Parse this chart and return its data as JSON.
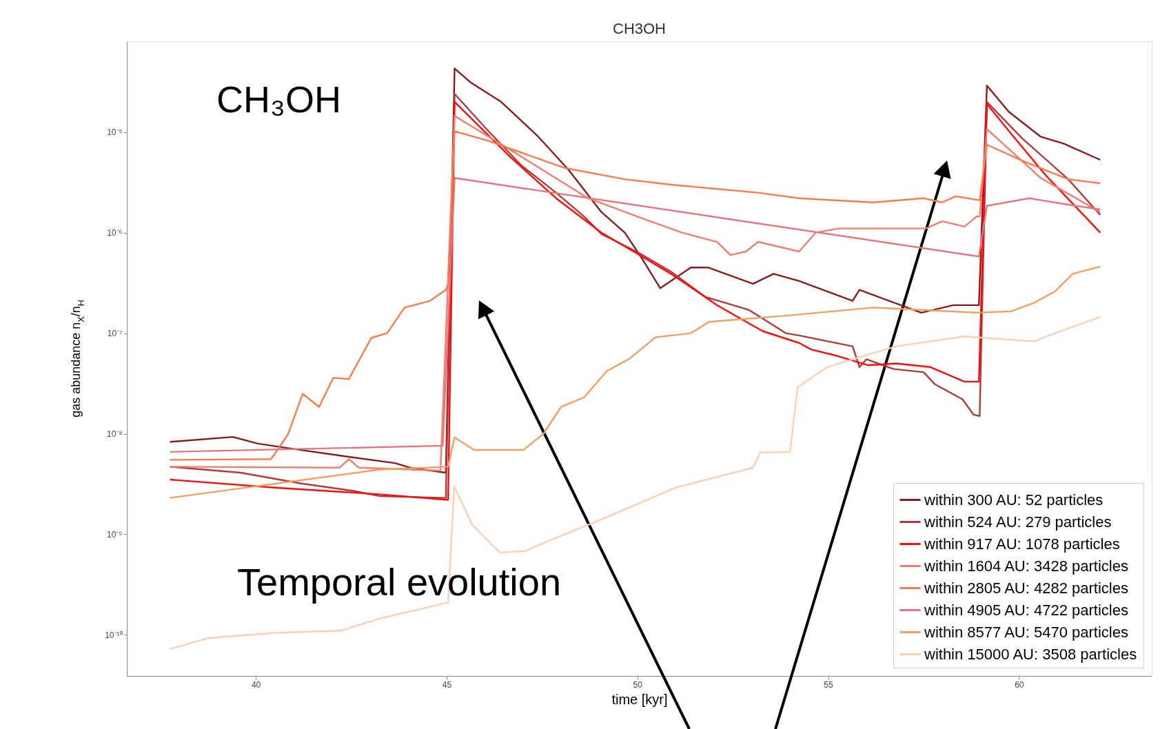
{
  "chart_data": {
    "type": "line",
    "title": "CH3OH",
    "xlabel": "time [kyr]",
    "ylabel": "gas abundance n$_{X}$/n$_{H}$",
    "annotations": [
      "CH₃OH",
      "Temporal evolution"
    ],
    "log": "y",
    "grid": false,
    "legend": "bottom right",
    "marker": "none",
    "line_style": "solid",
    "xlim": [
      36.62,
      63.48
    ],
    "xticks": [
      40,
      45,
      50,
      55,
      60
    ],
    "ylim": [
      3.9e-11,
      8e-05
    ],
    "yticks": [
      {
        "value": 1e-10,
        "label": "10⁻¹⁰"
      },
      {
        "value": 1e-09,
        "label": "10⁻⁹"
      },
      {
        "value": 1e-08,
        "label": "10⁻⁸"
      },
      {
        "value": 1e-07,
        "label": "10⁻⁷"
      },
      {
        "value": 1e-06,
        "label": "10⁻⁶"
      },
      {
        "value": 1e-05,
        "label": "10⁻⁵"
      }
    ],
    "series": [
      {
        "name": "within 300 AU: 52 particles",
        "color": "#8b1a1a",
        "x": [
          37.75,
          39.4,
          40.04,
          40.84,
          42.44,
          43.65,
          44.04,
          44.98,
          45.21,
          45.64,
          46.43,
          47.38,
          48.2,
          49.06,
          49.67,
          50.1,
          50.6,
          51.4,
          51.86,
          53.03,
          53.57,
          54.24,
          55.64,
          55.82,
          57.44,
          58.28,
          58.95,
          59.16,
          59.73,
          60.57,
          61.17,
          62.13
        ],
        "values": [
          8.3e-09,
          9.3e-09,
          8e-09,
          7.2e-09,
          5.9e-09,
          5.1e-09,
          4.6e-09,
          4.1e-09,
          4.3e-05,
          3.1e-05,
          2e-05,
          9.2e-06,
          4.2e-06,
          1.6e-06,
          1e-06,
          5.7e-07,
          2.8e-07,
          4.5e-07,
          4.5e-07,
          3.1e-07,
          3.9e-07,
          3.3e-07,
          2.1e-07,
          2.7e-07,
          1.6e-07,
          1.9e-07,
          1.9e-07,
          2.9e-05,
          1.6e-05,
          9e-06,
          7.7e-06,
          5.3e-06
        ]
      },
      {
        "name": "within 524 AU: 279 particles",
        "color": "#b03a3a",
        "x": [
          37.75,
          39.6,
          41.2,
          42.56,
          43.24,
          44.98,
          45.21,
          46.05,
          46.95,
          47.87,
          48.6,
          49.06,
          50.04,
          50.88,
          51.78,
          52.93,
          53.89,
          54.24,
          55.64,
          55.82,
          56.0,
          56.72,
          57.5,
          57.8,
          58.52,
          58.81,
          58.97,
          59.16,
          60.08,
          61.29,
          62.13
        ],
        "values": [
          4.7e-09,
          4.1e-09,
          3.2e-09,
          2.7e-09,
          2.4e-09,
          2.3e-09,
          2.4e-05,
          1.07e-05,
          4.7e-06,
          2.5e-06,
          1.45e-06,
          9.7e-07,
          6.3e-07,
          4.1e-07,
          2.3e-07,
          1.7e-07,
          1e-07,
          9.5e-08,
          7.4e-08,
          4.6e-08,
          5.5e-08,
          4.4e-08,
          4.1e-08,
          3.1e-08,
          2.2e-08,
          1.55e-08,
          1.5e-08,
          2e-05,
          8.7e-06,
          3.4e-06,
          1.5e-06
        ]
      },
      {
        "name": "within 917 AU: 1078 particles",
        "color": "#ff0a0a",
        "x": [
          37.75,
          40.57,
          43.24,
          45.04,
          45.21,
          46.66,
          47.87,
          49.06,
          49.96,
          50.88,
          52.09,
          53.28,
          54.24,
          54.55,
          55.27,
          56.05,
          56.78,
          57.68,
          58.57,
          58.95,
          59.16,
          59.79,
          60.68,
          62.13
        ],
        "values": [
          3.5e-09,
          2.9e-09,
          2.5e-09,
          2.2e-09,
          2e-05,
          5.7e-06,
          2.2e-06,
          1e-06,
          6.3e-07,
          3.9e-07,
          1.9e-07,
          1.05e-07,
          8e-08,
          6.9e-08,
          5.9e-08,
          4.8e-08,
          5e-08,
          4.6e-08,
          3.3e-08,
          3.3e-08,
          1.9e-05,
          9.7e-06,
          3.8e-06,
          1e-06
        ]
      },
      {
        "name": "within 1604 AU: 3428 particles",
        "color": "#f47c6c",
        "x": [
          37.75,
          42.2,
          42.44,
          42.7,
          44.84,
          45.21,
          46.66,
          48.71,
          50.1,
          51.17,
          52.09,
          52.44,
          52.85,
          53.16,
          54.24,
          54.67,
          55.27,
          57.56,
          57.99,
          58.57,
          58.89,
          58.97,
          59.16,
          60.57,
          62.13
        ],
        "values": [
          4.7e-09,
          4.6e-09,
          5.6e-09,
          4.6e-09,
          4.3e-09,
          1.45e-05,
          6.7e-06,
          2.2e-06,
          1.4e-06,
          1e-06,
          8.1e-07,
          6e-07,
          6.5e-07,
          8.1e-07,
          6.5e-07,
          1e-06,
          1.1e-06,
          1.1e-06,
          1.3e-06,
          1.15e-06,
          1.45e-06,
          1.45e-06,
          1.07e-05,
          3.5e-06,
          1.6e-06
        ]
      },
      {
        "name": "within 2805 AU: 4282 particles",
        "color": "#fc7a4a",
        "x": [
          37.75,
          40.4,
          40.84,
          41.23,
          41.66,
          42.03,
          42.44,
          43.03,
          43.44,
          43.9,
          44.57,
          44.98,
          45.04,
          45.21,
          46.05,
          48.1,
          49.67,
          50.88,
          53.16,
          54.24,
          56.17,
          57.5,
          57.99,
          58.34,
          58.97,
          59.16,
          60.08,
          61.29,
          62.13
        ],
        "values": [
          5.5e-09,
          5.6e-09,
          9.8e-09,
          2.5e-08,
          1.85e-08,
          3.6e-08,
          3.5e-08,
          9e-08,
          1e-07,
          1.8e-07,
          2.1e-07,
          2.7e-07,
          3.1e-07,
          1.02e-05,
          8.3e-06,
          4.4e-06,
          3.4e-06,
          3e-06,
          2.5e-06,
          2.2e-06,
          2e-06,
          2.2e-06,
          2e-06,
          2.3e-06,
          2.1e-06,
          7.5e-06,
          5.2e-06,
          3.4e-06,
          3.1e-06
        ]
      },
      {
        "name": "within 4905 AU: 4722 particles",
        "color": "#e8737d",
        "x": [
          37.75,
          44.9,
          45.21,
          58.95,
          59.16,
          60.27,
          61.29,
          62.13
        ],
        "values": [
          6.6e-09,
          7.6e-09,
          3.5e-06,
          5.8e-07,
          1.85e-06,
          2.2e-06,
          1.9e-06,
          1.7e-06
        ]
      },
      {
        "name": "within 8577 AU: 5470 particles",
        "color": "#f0a060",
        "x": [
          37.75,
          43.24,
          45.04,
          45.21,
          45.72,
          47.01,
          47.54,
          48.0,
          48.6,
          49.2,
          49.8,
          50.47,
          51.4,
          51.88,
          53.96,
          56.17,
          58.89,
          59.79,
          60.39,
          60.94,
          61.41,
          62.13
        ],
        "values": [
          2.3e-09,
          4.4e-09,
          4.7e-09,
          9.2e-09,
          6.9e-09,
          6.9e-09,
          1e-08,
          1.85e-08,
          2.3e-08,
          4.2e-08,
          5.6e-08,
          9.1e-08,
          1e-07,
          1.3e-07,
          1.5e-07,
          1.8e-07,
          1.6e-07,
          1.65e-07,
          2e-07,
          2.6e-07,
          3.9e-07,
          4.6e-07
        ]
      },
      {
        "name": "within 15000 AU: 3508 particles",
        "color": "#fdcfb0",
        "x": [
          37.75,
          38.75,
          40.57,
          42.23,
          43.24,
          45.04,
          45.2,
          45.66,
          46.39,
          47.05,
          47.68,
          49.14,
          51.0,
          53.03,
          53.22,
          54.0,
          54.2,
          54.97,
          56.78,
          58.57,
          60.39,
          60.94,
          62.13
        ],
        "values": [
          7.2e-11,
          9.3e-11,
          1.05e-10,
          1.1e-10,
          1.45e-10,
          2.1e-10,
          3e-09,
          1.26e-09,
          6.6e-10,
          6.8e-10,
          8.6e-10,
          1.45e-09,
          2.9e-09,
          4.6e-09,
          6.5e-09,
          6.6e-09,
          2.9e-08,
          4.6e-08,
          7.4e-08,
          9.3e-08,
          8.3e-08,
          1e-07,
          1.45e-07
        ]
      }
    ]
  }
}
